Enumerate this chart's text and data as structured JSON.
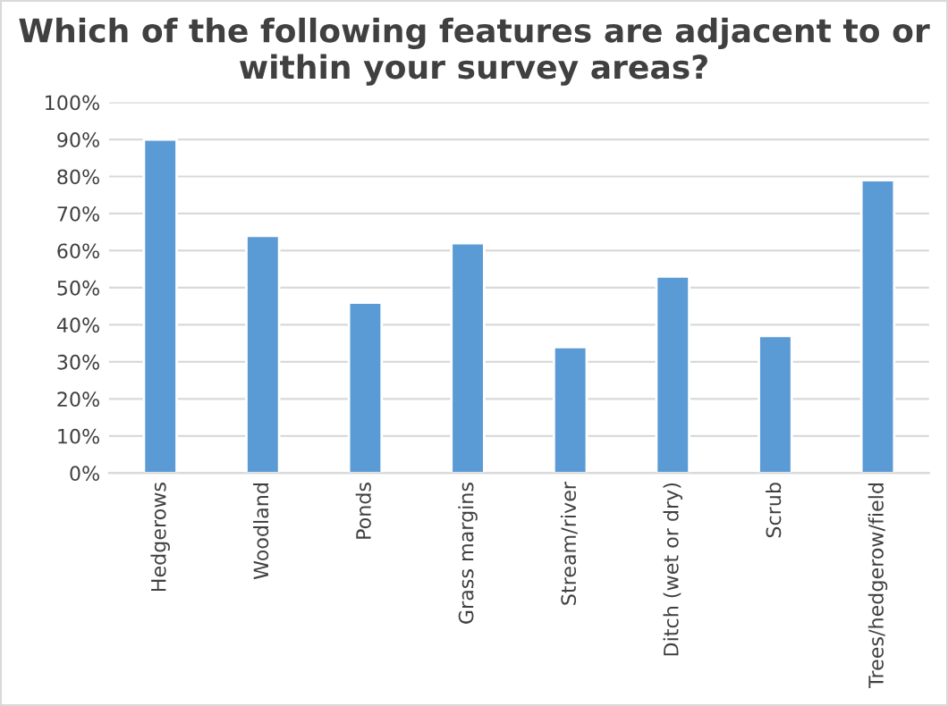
{
  "chart_data": {
    "type": "bar",
    "title": "Which of the following features are adjacent to or within your survey areas?",
    "categories": [
      "Hedgerows",
      "Woodland",
      "Ponds",
      "Grass margins",
      "Stream/river",
      "Ditch (wet or dry)",
      "Scrub",
      "Trees/hedgerow/field"
    ],
    "values": [
      90,
      64,
      46,
      62,
      34,
      53,
      37,
      79
    ],
    "color": "#5b9bd5",
    "ylim": [
      0,
      100
    ],
    "yticks": [
      {
        "value": 0,
        "label": "0%"
      },
      {
        "value": 10,
        "label": "10%"
      },
      {
        "value": 20,
        "label": "20%"
      },
      {
        "value": 30,
        "label": "30%"
      },
      {
        "value": 40,
        "label": "40%"
      },
      {
        "value": 50,
        "label": "50%"
      },
      {
        "value": 60,
        "label": "60%"
      },
      {
        "value": 70,
        "label": "70%"
      },
      {
        "value": 80,
        "label": "80%"
      },
      {
        "value": 90,
        "label": "90%"
      },
      {
        "value": 100,
        "label": "100%"
      }
    ],
    "grid": "y",
    "legend": false
  }
}
